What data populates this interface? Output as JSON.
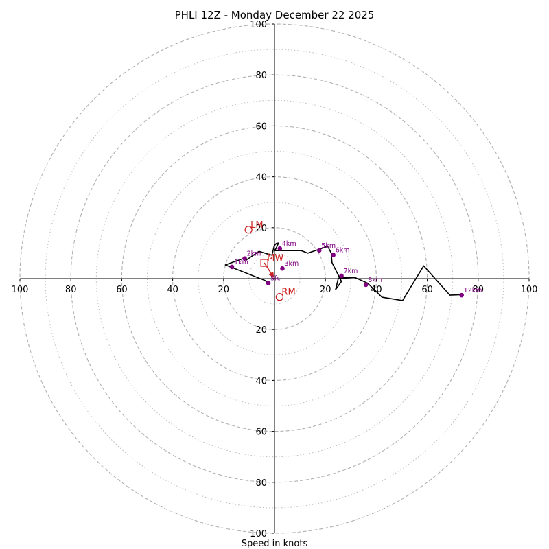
{
  "chart_data": {
    "type": "hodograph",
    "title": "PHLI 12Z - Monday December 22 2025",
    "xlabel": "Speed in knots",
    "xlim": [
      -100,
      100
    ],
    "ylim": [
      -100,
      100
    ],
    "x_tick_labels": [
      "100",
      "80",
      "60",
      "40",
      "20",
      "20",
      "40",
      "60",
      "80",
      "100"
    ],
    "x_tick_values": [
      -100,
      -80,
      -60,
      -40,
      -20,
      20,
      40,
      60,
      80,
      100
    ],
    "y_tick_labels": [
      "100",
      "80",
      "60",
      "40",
      "20",
      "20",
      "40",
      "60",
      "80",
      "100"
    ],
    "y_tick_values": [
      100,
      80,
      60,
      40,
      20,
      -20,
      -40,
      -60,
      -80,
      -100
    ],
    "rings_major": [
      20,
      40,
      60,
      80,
      100
    ],
    "rings_minor": [
      10,
      30,
      50,
      70,
      90
    ],
    "grid": true,
    "colors": {
      "trace": "#000000",
      "height_marker": "#800080",
      "storm_motion": "#cc2222",
      "ring": "#b0b0b0",
      "axis": "#000000"
    },
    "hodograph": {
      "u": [
        -2.4,
        -3.8,
        -19.3,
        -12.3,
        -10.9,
        -6.1,
        -1.0,
        -0.1,
        0.2,
        0.7,
        1.6,
        0.2,
        4.8,
        10.5,
        13.1,
        17.6,
        20.9,
        22.3,
        22.6,
        26.3,
        24.0,
        25.1,
        31.4,
        36.6,
        42.2,
        50.3,
        58.6,
        68.9,
        72.8
      ],
      "v": [
        -1.8,
        -0.7,
        5.4,
        7.9,
        7.4,
        10.7,
        9.2,
        12.9,
        13.2,
        13.8,
        14.0,
        11.0,
        11.0,
        11.0,
        10.0,
        11.5,
        12.7,
        10.0,
        6.3,
        -1.1,
        -4.3,
        0.2,
        0.5,
        -1.8,
        -7.3,
        -8.6,
        5.0,
        -6.5,
        -6.3
      ]
    },
    "height_markers": [
      {
        "label": "Sfc",
        "u": -2.4,
        "v": -1.8
      },
      {
        "label": "1km",
        "u": -16.7,
        "v": 4.6
      },
      {
        "label": "2km",
        "u": -11.7,
        "v": 7.9
      },
      {
        "label": "3km",
        "u": 3.1,
        "v": 4.0
      },
      {
        "label": "4km",
        "u": 2.1,
        "v": 11.8
      },
      {
        "label": "5km",
        "u": 17.6,
        "v": 11.1
      },
      {
        "label": "6km",
        "u": 23.1,
        "v": 9.3
      },
      {
        "label": "7km",
        "u": 26.3,
        "v": 1.1
      },
      {
        "label": "8km",
        "u": 35.9,
        "v": -2.4
      },
      {
        "label": "12km",
        "u": 73.5,
        "v": -6.5
      }
    ],
    "storm_motion": {
      "lm": {
        "label": "LM",
        "u": -10.2,
        "v": 19.2
      },
      "rm": {
        "label": "RM",
        "u": 2.0,
        "v": -7.2
      },
      "mw": {
        "label": "MW",
        "u": -4.0,
        "v": 6.2
      },
      "arrow_from": {
        "u": -4.0,
        "v": 6.2
      },
      "arrow_to": {
        "u": -0.5,
        "v": 0.8
      }
    }
  }
}
